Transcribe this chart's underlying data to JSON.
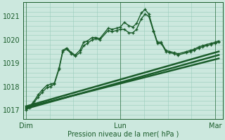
{
  "bg_color": "#cce8de",
  "grid_color": "#99ccbb",
  "line_color": "#1a5c2a",
  "xlabel": "Pression niveau de la mer( hPa )",
  "xtick_labels": [
    "Dim",
    "Lun",
    "Mar"
  ],
  "xtick_positions": [
    0.0,
    1.0,
    2.0
  ],
  "ytick_labels": [
    "1017",
    "1018",
    "1019",
    "1020",
    "1021"
  ],
  "ylim": [
    1016.6,
    1021.6
  ],
  "xlim": [
    -0.03,
    2.08
  ],
  "series": [
    {
      "x": [
        0.0,
        0.04,
        0.08,
        0.13,
        0.17,
        0.22,
        0.26,
        0.3,
        0.35,
        0.39,
        0.43,
        0.48,
        0.52,
        0.57,
        0.61,
        0.65,
        0.7,
        0.74,
        0.78,
        0.87,
        0.91,
        0.96,
        1.0,
        1.04,
        1.09,
        1.13,
        1.17,
        1.22,
        1.26,
        1.3,
        1.35,
        1.39,
        1.43,
        1.48,
        1.52,
        1.57,
        1.61,
        1.7,
        1.74,
        1.78,
        1.83,
        1.87,
        1.91,
        1.96,
        2.0,
        2.04
      ],
      "y": [
        1017.0,
        1017.15,
        1017.35,
        1017.65,
        1017.85,
        1018.05,
        1018.1,
        1018.15,
        1018.8,
        1019.55,
        1019.65,
        1019.45,
        1019.35,
        1019.55,
        1019.9,
        1019.95,
        1020.1,
        1020.1,
        1020.05,
        1020.5,
        1020.45,
        1020.5,
        1020.55,
        1020.75,
        1020.6,
        1020.55,
        1020.7,
        1021.15,
        1021.3,
        1021.1,
        1020.4,
        1019.9,
        1019.9,
        1019.55,
        1019.5,
        1019.45,
        1019.4,
        1019.5,
        1019.55,
        1019.6,
        1019.7,
        1019.75,
        1019.8,
        1019.85,
        1019.9,
        1019.95
      ],
      "marker": true,
      "lw": 1.0
    },
    {
      "x": [
        0.0,
        0.04,
        0.08,
        0.13,
        0.17,
        0.22,
        0.26,
        0.3,
        0.35,
        0.39,
        0.43,
        0.48,
        0.52,
        0.57,
        0.61,
        0.65,
        0.7,
        0.74,
        0.78,
        0.87,
        0.91,
        0.96,
        1.0,
        1.04,
        1.09,
        1.13,
        1.17,
        1.22,
        1.26,
        1.3,
        1.35,
        1.39,
        1.43,
        1.48,
        1.52,
        1.57,
        1.61,
        1.7,
        1.74,
        1.78,
        1.83,
        1.87,
        1.91,
        1.96,
        2.0,
        2.04
      ],
      "y": [
        1017.0,
        1017.1,
        1017.3,
        1017.55,
        1017.75,
        1017.95,
        1018.0,
        1018.1,
        1018.75,
        1019.5,
        1019.6,
        1019.4,
        1019.3,
        1019.45,
        1019.75,
        1019.85,
        1020.0,
        1020.05,
        1020.0,
        1020.4,
        1020.35,
        1020.4,
        1020.45,
        1020.45,
        1020.3,
        1020.3,
        1020.45,
        1020.9,
        1021.1,
        1021.0,
        1020.35,
        1019.85,
        1019.85,
        1019.5,
        1019.45,
        1019.4,
        1019.35,
        1019.45,
        1019.5,
        1019.55,
        1019.65,
        1019.7,
        1019.75,
        1019.8,
        1019.85,
        1019.9
      ],
      "marker": true,
      "lw": 1.0
    },
    {
      "x": [
        0.0,
        2.04
      ],
      "y": [
        1017.05,
        1019.35
      ],
      "marker": false,
      "lw": 1.8
    },
    {
      "x": [
        0.0,
        2.04
      ],
      "y": [
        1017.1,
        1019.2
      ],
      "marker": false,
      "lw": 1.8
    },
    {
      "x": [
        0.0,
        2.04
      ],
      "y": [
        1017.15,
        1019.5
      ],
      "marker": false,
      "lw": 1.8
    }
  ]
}
